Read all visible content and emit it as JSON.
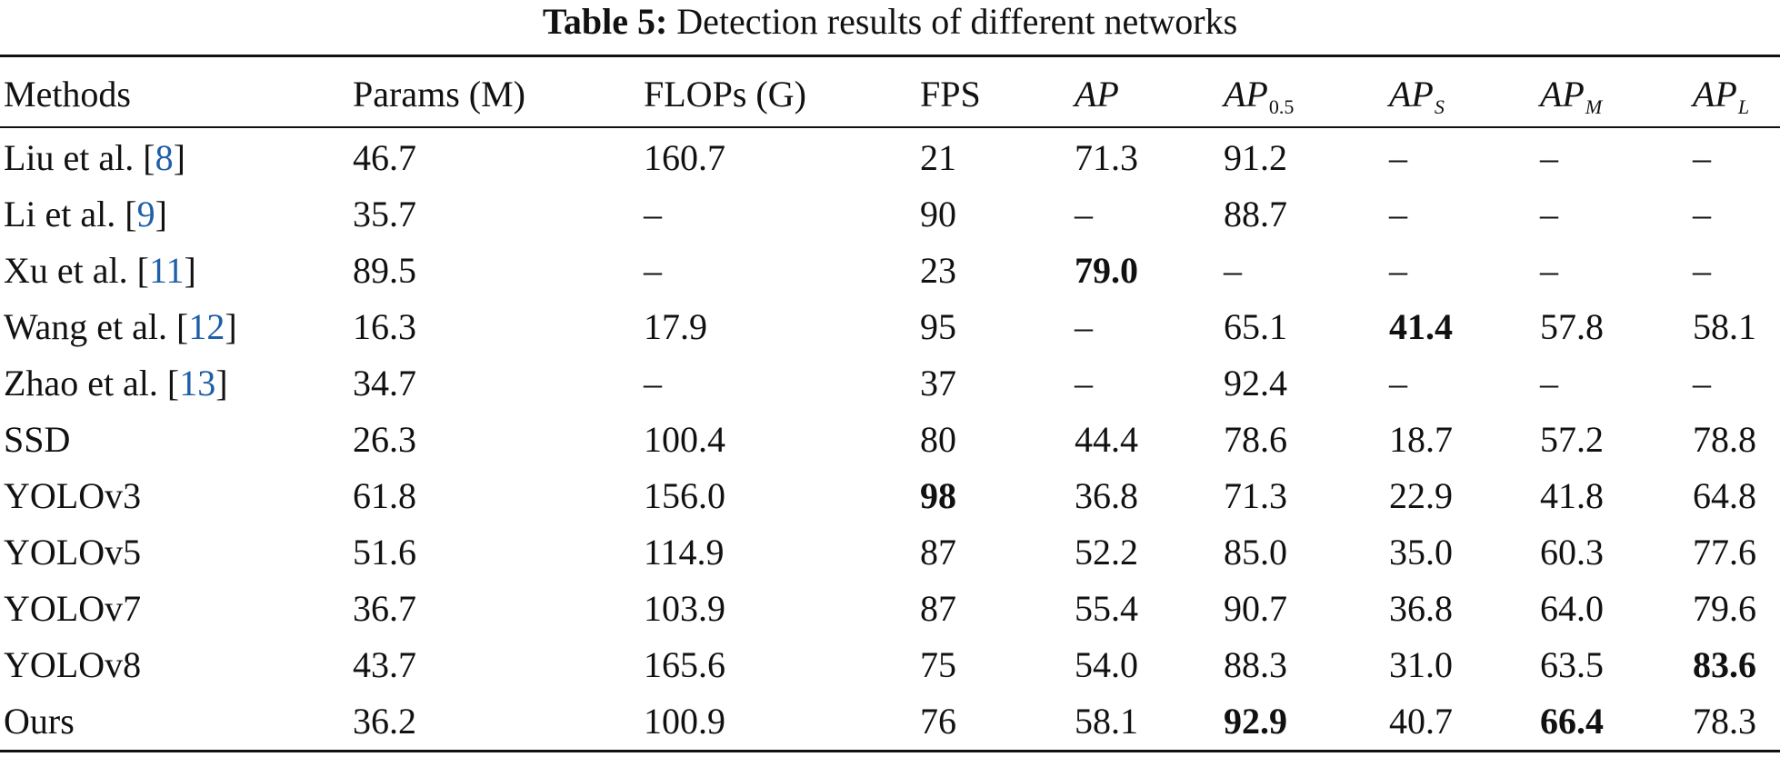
{
  "caption": {
    "label": "Table 5:",
    "text": "Detection results of different networks"
  },
  "header": {
    "methods": "Methods",
    "params": "Params (M)",
    "flops": "FLOPs (G)",
    "fps": "FPS",
    "ap": "AP",
    "ap05_base": "AP",
    "ap05_sub": "0.5",
    "aps_base": "AP",
    "aps_sub": "S",
    "apm_base": "AP",
    "apm_sub": "M",
    "apl_base": "AP",
    "apl_sub": "L"
  },
  "rows": [
    {
      "method": "Liu et al. [",
      "ref": "8",
      "close": "]",
      "params": "46.7",
      "flops": "160.7",
      "fps": "21",
      "ap": "71.3",
      "ap05": "91.2",
      "aps": "–",
      "apm": "–",
      "apl": "–"
    },
    {
      "method": "Li et al. [",
      "ref": "9",
      "close": "]",
      "params": "35.7",
      "flops": "–",
      "fps": "90",
      "ap": "–",
      "ap05": "88.7",
      "aps": "–",
      "apm": "–",
      "apl": "–"
    },
    {
      "method": "Xu et al. [",
      "ref": "11",
      "close": "]",
      "params": "89.5",
      "flops": "–",
      "fps": "23",
      "ap": "79.0",
      "ap05": "–",
      "aps": "–",
      "apm": "–",
      "apl": "–"
    },
    {
      "method": "Wang et al. [",
      "ref": "12",
      "close": "]",
      "params": "16.3",
      "flops": "17.9",
      "fps": "95",
      "ap": "–",
      "ap05": "65.1",
      "aps": "41.4",
      "apm": "57.8",
      "apl": "58.1"
    },
    {
      "method": "Zhao et al. [",
      "ref": "13",
      "close": "]",
      "params": "34.7",
      "flops": "–",
      "fps": "37",
      "ap": "–",
      "ap05": "92.4",
      "aps": "–",
      "apm": "–",
      "apl": "–"
    },
    {
      "method": "SSD",
      "params": "26.3",
      "flops": "100.4",
      "fps": "80",
      "ap": "44.4",
      "ap05": "78.6",
      "aps": "18.7",
      "apm": "57.2",
      "apl": "78.8"
    },
    {
      "method": "YOLOv3",
      "params": "61.8",
      "flops": "156.0",
      "fps": "98",
      "ap": "36.8",
      "ap05": "71.3",
      "aps": "22.9",
      "apm": "41.8",
      "apl": "64.8"
    },
    {
      "method": "YOLOv5",
      "params": "51.6",
      "flops": "114.9",
      "fps": "87",
      "ap": "52.2",
      "ap05": "85.0",
      "aps": "35.0",
      "apm": "60.3",
      "apl": "77.6"
    },
    {
      "method": "YOLOv7",
      "params": "36.7",
      "flops": "103.9",
      "fps": "87",
      "ap": "55.4",
      "ap05": "90.7",
      "aps": "36.8",
      "apm": "64.0",
      "apl": "79.6"
    },
    {
      "method": "YOLOv8",
      "params": "43.7",
      "flops": "165.6",
      "fps": "75",
      "ap": "54.0",
      "ap05": "88.3",
      "aps": "31.0",
      "apm": "63.5",
      "apl": "83.6"
    },
    {
      "method": "Ours",
      "params": "36.2",
      "flops": "100.9",
      "fps": "76",
      "ap": "58.1",
      "ap05": "92.9",
      "aps": "40.7",
      "apm": "66.4",
      "apl": "78.3"
    }
  ]
}
